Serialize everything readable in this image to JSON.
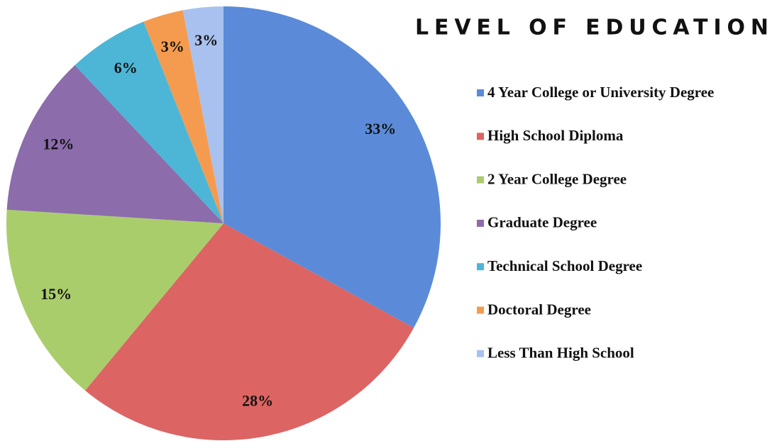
{
  "chart_data": {
    "type": "pie",
    "title": "LEVEL OF EDUCATION",
    "categories": [
      "4 Year College or University Degree",
      "High School Diploma",
      "2 Year College Degree",
      "Graduate Degree",
      "Technical School Degree",
      "Doctoral Degree",
      "Less Than High School"
    ],
    "values": [
      33,
      28,
      15,
      12,
      6,
      3,
      3
    ],
    "value_labels": [
      "33%",
      "28%",
      "15%",
      "12%",
      "6%",
      "3%",
      "3%"
    ],
    "colors": [
      "#5b8bd8",
      "#dc6463",
      "#aacd6c",
      "#8c6cab",
      "#4db6d6",
      "#f59b4f",
      "#a9c1ee"
    ]
  }
}
